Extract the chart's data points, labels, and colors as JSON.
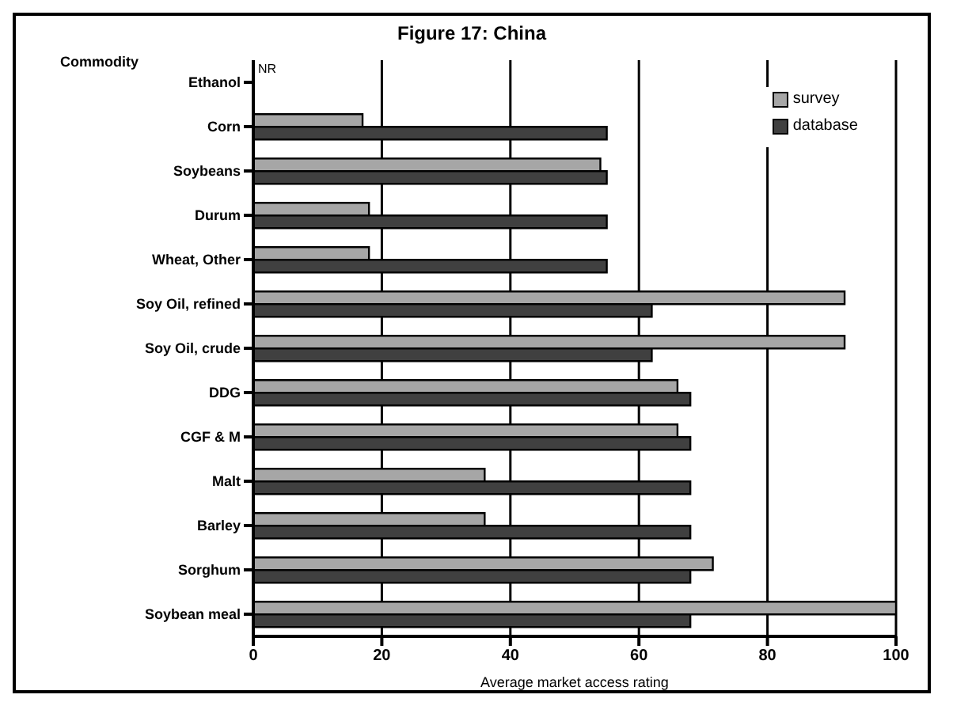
{
  "chart_data": {
    "type": "bar",
    "orientation": "horizontal",
    "title": "Figure 17: China",
    "xlabel": "Average market access rating",
    "ylabel": "Commodity",
    "categories": [
      "Ethanol",
      "Corn",
      "Soybeans",
      "Durum",
      "Wheat, Other",
      "Soy Oil, refined",
      "Soy Oil, crude",
      "DDG",
      "CGF & M",
      "Malt",
      "Barley",
      "Sorghum",
      "Soybean meal"
    ],
    "series": [
      {
        "name": "survey",
        "color": "#a6a6a6",
        "values": [
          null,
          17,
          54,
          18,
          18,
          92,
          92,
          66,
          66,
          36,
          36,
          71.5,
          100
        ]
      },
      {
        "name": "database",
        "color": "#404040",
        "values": [
          null,
          55,
          55,
          55,
          55,
          62,
          62,
          68,
          68,
          68,
          68,
          68,
          68
        ]
      }
    ],
    "xlim": [
      0,
      100
    ],
    "xticks": [
      0,
      20,
      40,
      60,
      80,
      100
    ],
    "grid": "x",
    "legend": "top right",
    "annotations": [
      "NR"
    ]
  }
}
